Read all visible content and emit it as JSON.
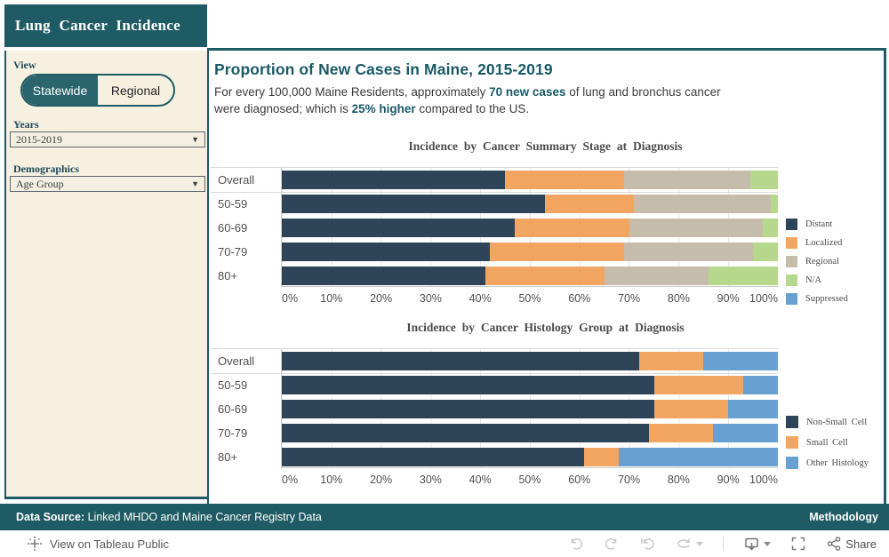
{
  "header": {
    "title": "Lung Cancer Incidence"
  },
  "sidebar": {
    "view_label": "View",
    "toggle": {
      "options": [
        "Statewide",
        "Regional"
      ],
      "selected": "Statewide"
    },
    "years_label": "Years",
    "years_value": "2015-2019",
    "demographics_label": "Demographics",
    "demographics_value": "Age Group"
  },
  "main": {
    "heading": "Proportion of New Cases in Maine, 2015-2019",
    "intro_line1": {
      "t1": "For every 100,000 Maine Residents, approximately ",
      "b": "70 new cases",
      "t2": " of lung and bronchus cancer"
    },
    "intro_line2": {
      "t1": "were diagnosed; which is ",
      "b": "25% higher",
      "t2": " compared to the US."
    }
  },
  "chart_data": [
    {
      "type": "bar",
      "orientation": "horizontal-stacked-100pct",
      "title": "Incidence by Cancer Summary Stage at Diagnosis",
      "categories": [
        "Overall",
        "50-59",
        "60-69",
        "70-79",
        "80+"
      ],
      "series": [
        {
          "name": "Distant",
          "color": "#2E4459",
          "values": [
            45,
            53,
            47,
            42,
            41
          ]
        },
        {
          "name": "Localized",
          "color": "#F2A461",
          "values": [
            24,
            18,
            23,
            27,
            24
          ]
        },
        {
          "name": "Regional",
          "color": "#C6BCAC",
          "values": [
            25.5,
            27.5,
            27,
            26,
            21
          ]
        },
        {
          "name": "N/A",
          "color": "#B5D88D",
          "values": [
            5.5,
            1.5,
            3,
            5,
            14
          ]
        },
        {
          "name": "Suppressed",
          "color": "#68A0D2",
          "values": [
            0,
            0,
            0,
            0,
            0
          ]
        }
      ],
      "x_ticks": [
        "0%",
        "10%",
        "20%",
        "30%",
        "40%",
        "50%",
        "60%",
        "70%",
        "80%",
        "90%",
        "100%"
      ],
      "xlim": [
        0,
        100
      ],
      "legend_position": "right",
      "grid": true
    },
    {
      "type": "bar",
      "orientation": "horizontal-stacked-100pct",
      "title": "Incidence by Cancer Histology Group at Diagnosis",
      "categories": [
        "Overall",
        "50-59",
        "60-69",
        "70-79",
        "80+"
      ],
      "series": [
        {
          "name": "Non-Small Cell",
          "color": "#2E4459",
          "values": [
            72,
            75,
            75,
            74,
            61
          ]
        },
        {
          "name": "Small Cell",
          "color": "#F2A461",
          "values": [
            13,
            18,
            15,
            13,
            7
          ]
        },
        {
          "name": "Other Histology",
          "color": "#68A0D2",
          "values": [
            15,
            7,
            10,
            13,
            32
          ]
        }
      ],
      "x_ticks": [
        "0%",
        "10%",
        "20%",
        "30%",
        "40%",
        "50%",
        "60%",
        "70%",
        "80%",
        "90%",
        "100%"
      ],
      "xlim": [
        0,
        100
      ],
      "legend_position": "right",
      "grid": true
    }
  ],
  "footer": {
    "source_label": "Data Source:",
    "source_text": " Linked MHDO and Maine Cancer Registry Data",
    "methodology": "Methodology"
  },
  "bottombar": {
    "view_link": "View on Tableau Public",
    "share": "Share"
  },
  "colors": {
    "teal": "#1E5B64",
    "toggle_selected": "#2A646C",
    "sidebar_bg": "#F6F0E1",
    "heading_text": "#1A5A66",
    "bar_navy": "#2E4459",
    "bar_orange": "#F2A461",
    "bar_tan": "#C6BCAC",
    "bar_green": "#B5D88D",
    "bar_blue": "#68A0D2"
  }
}
